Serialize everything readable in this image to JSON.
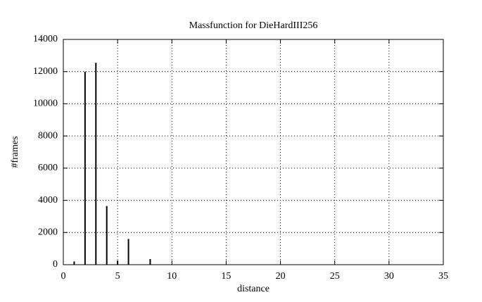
{
  "chart_data": {
    "type": "impulse",
    "title": "Massfunction for DieHardIII256",
    "xlabel": "distance",
    "ylabel": "#frames",
    "x": [
      1,
      2,
      3,
      4,
      5,
      6,
      8
    ],
    "values": [
      200,
      12000,
      12550,
      3650,
      250,
      1600,
      350
    ],
    "color": "#000000",
    "xlim": [
      0,
      35
    ],
    "xticks": [
      0,
      5,
      10,
      15,
      20,
      25,
      30,
      35
    ],
    "ylim": [
      0,
      14000
    ],
    "yticks": [
      0,
      2000,
      4000,
      6000,
      8000,
      10000,
      12000,
      14000
    ],
    "grid": true
  }
}
